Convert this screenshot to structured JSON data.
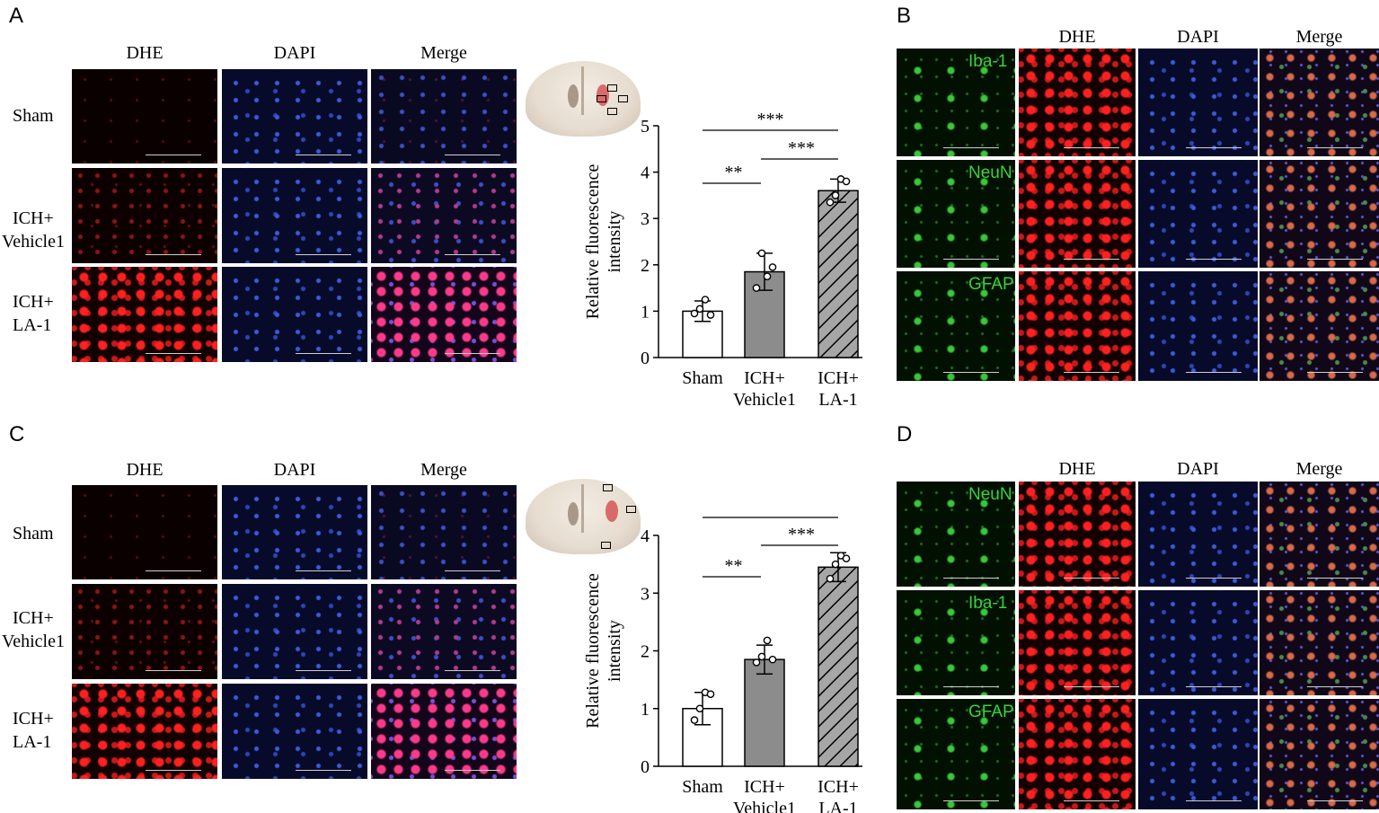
{
  "panels": {
    "a": "A",
    "b": "B",
    "c": "C",
    "d": "D"
  },
  "columns": {
    "dhe": "DHE",
    "dapi": "DAPI",
    "merge": "Merge"
  },
  "rows": {
    "sham": "Sham",
    "veh_1": "ICH+",
    "veh_2": "Vehicle1",
    "la_1": "ICH+",
    "la_2": "LA-1"
  },
  "markers_b": [
    "Iba-1",
    "NeuN",
    "GFAP"
  ],
  "markers_d": [
    "NeuN",
    "Iba-1",
    "GFAP"
  ],
  "colors": {
    "white_bar": "#ffffff",
    "grey_bar": "#8c8c8c",
    "hatched_bar": "#a6a6a6"
  },
  "chart_data": [
    {
      "type": "bar",
      "panel": "A",
      "categories": [
        [
          "Sham"
        ],
        [
          "ICH+",
          "Vehicle1"
        ],
        [
          "ICH+",
          "LA-1"
        ]
      ],
      "values": [
        1.0,
        1.85,
        3.6
      ],
      "errors": [
        0.22,
        0.4,
        0.25
      ],
      "points": [
        [
          0.95,
          1.05,
          1.25,
          0.92
        ],
        [
          1.5,
          2.25,
          1.75,
          1.95
        ],
        [
          3.35,
          3.5,
          3.85,
          3.8
        ]
      ],
      "ylabel": "Relative fluorescence intensity",
      "ylabel_lines": [
        "Relative fluorescence",
        "intensity"
      ],
      "ylim": [
        0,
        5
      ],
      "yticks": [
        "0",
        "1",
        "2",
        "3",
        "4",
        "5"
      ],
      "sig": [
        {
          "from": 0,
          "to": 1,
          "label": "**"
        },
        {
          "from": 1,
          "to": 2,
          "label": "***"
        },
        {
          "from": 0,
          "to": 2,
          "label": "***"
        }
      ]
    },
    {
      "type": "bar",
      "panel": "C",
      "categories": [
        [
          "Sham"
        ],
        [
          "ICH+",
          "Vehicle1"
        ],
        [
          "ICH+",
          "LA-1"
        ]
      ],
      "values": [
        1.0,
        1.85,
        3.45
      ],
      "errors": [
        0.28,
        0.25,
        0.25
      ],
      "points": [
        [
          0.8,
          1.0,
          1.28,
          1.25
        ],
        [
          1.8,
          1.9,
          2.18,
          1.85
        ],
        [
          3.25,
          3.5,
          3.65,
          3.6
        ]
      ],
      "ylabel": "Relative fluorescence intensity",
      "ylabel_lines": [
        "Relative fluorescence",
        "intensity"
      ],
      "ylim": [
        0,
        4
      ],
      "yticks": [
        "0",
        "1",
        "2",
        "3",
        "4"
      ],
      "sig": [
        {
          "from": 0,
          "to": 1,
          "label": "**"
        },
        {
          "from": 1,
          "to": 2,
          "label": "***"
        },
        {
          "from": 0,
          "to": 2,
          "label": "***"
        }
      ]
    }
  ]
}
